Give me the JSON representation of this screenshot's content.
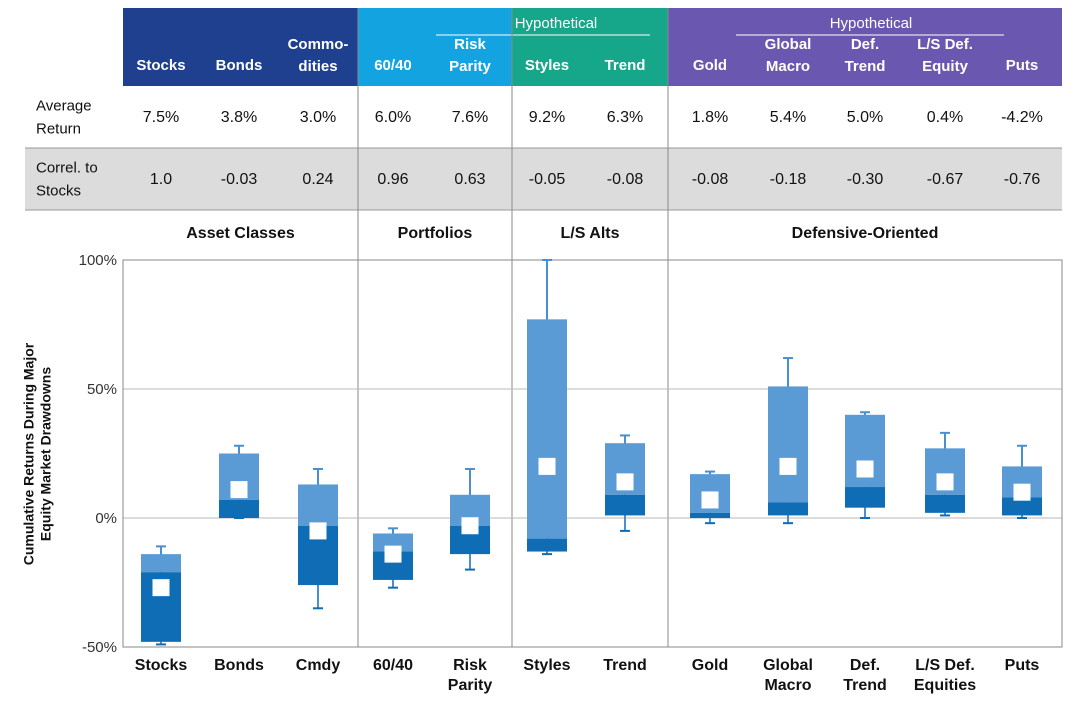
{
  "table": {
    "groups": [
      {
        "label": ""
      },
      {
        "label": "Hypothetical"
      },
      {
        "label": "Hypothetical"
      }
    ],
    "columns": [
      "Stocks",
      "Bonds",
      "Commo-\ndities",
      "60/40",
      "Risk\nParity",
      "Styles",
      "Trend",
      "Gold",
      "Global\nMacro",
      "Def.\nTrend",
      "L/S Def.\nEquity",
      "Puts"
    ],
    "rows": [
      {
        "label": "Average\nReturn",
        "values": [
          "7.5%",
          "3.8%",
          "3.0%",
          "6.0%",
          "7.6%",
          "9.2%",
          "6.3%",
          "1.8%",
          "5.4%",
          "5.0%",
          "0.4%",
          "-4.2%"
        ]
      },
      {
        "label": "Correl. to\nStocks",
        "values": [
          "1.0",
          "-0.03",
          "0.24",
          "0.96",
          "0.63",
          "-0.05",
          "-0.08",
          "-0.08",
          "-0.18",
          "-0.30",
          "-0.67",
          "-0.76"
        ]
      }
    ]
  },
  "colors": {
    "asset_classes": "#1f3f8f",
    "portfolios": "#12a3e0",
    "ls_alts": "#16a78a",
    "defensive": "#6a58b0",
    "box_light": "#5b9bd5",
    "box_dark": "#0e6db5",
    "whisker": "#4a8fd0",
    "row_shade": "#dcdcdc"
  },
  "chart_data": {
    "type": "box",
    "ylabel": "Cumulative Returns During Major\nEquity Market Drawdowns",
    "ylim": [
      -50,
      100
    ],
    "yticks": [
      "-50%",
      "0%",
      "50%",
      "100%"
    ],
    "sections": [
      "Asset Classes",
      "Portfolios",
      "L/S Alts",
      "Defensive-Oriented"
    ],
    "categories": [
      "Stocks",
      "Bonds",
      "Cmdy",
      "60/40",
      "Risk\nParity",
      "Styles",
      "Trend",
      "Gold",
      "Global\nMacro",
      "Def.\nTrend",
      "L/S Def.\nEquities",
      "Puts"
    ],
    "boxes": [
      {
        "min": -49,
        "q1": -48,
        "median": -21,
        "q3": -14,
        "max": -11,
        "mean": -27
      },
      {
        "min": 0,
        "q1": 0,
        "median": 7,
        "q3": 25,
        "max": 28,
        "mean": 11
      },
      {
        "min": -35,
        "q1": -26,
        "median": -3,
        "q3": 13,
        "max": 19,
        "mean": -5
      },
      {
        "min": -27,
        "q1": -24,
        "median": -13,
        "q3": -6,
        "max": -4,
        "mean": -14
      },
      {
        "min": -20,
        "q1": -14,
        "median": -3,
        "q3": 9,
        "max": 19,
        "mean": -3
      },
      {
        "min": -14,
        "q1": -13,
        "median": -8,
        "q3": 77,
        "max": 100,
        "mean": 20
      },
      {
        "min": -5,
        "q1": 1,
        "median": 9,
        "q3": 29,
        "max": 32,
        "mean": 14
      },
      {
        "min": -2,
        "q1": 0,
        "median": 2,
        "q3": 17,
        "max": 18,
        "mean": 7
      },
      {
        "min": -2,
        "q1": 1,
        "median": 6,
        "q3": 51,
        "max": 62,
        "mean": 20
      },
      {
        "min": 0,
        "q1": 4,
        "median": 12,
        "q3": 40,
        "max": 41,
        "mean": 19
      },
      {
        "min": 1,
        "q1": 2,
        "median": 9,
        "q3": 27,
        "max": 33,
        "mean": 14
      },
      {
        "min": 0,
        "q1": 1,
        "median": 8,
        "q3": 20,
        "max": 28,
        "mean": 10
      }
    ]
  }
}
